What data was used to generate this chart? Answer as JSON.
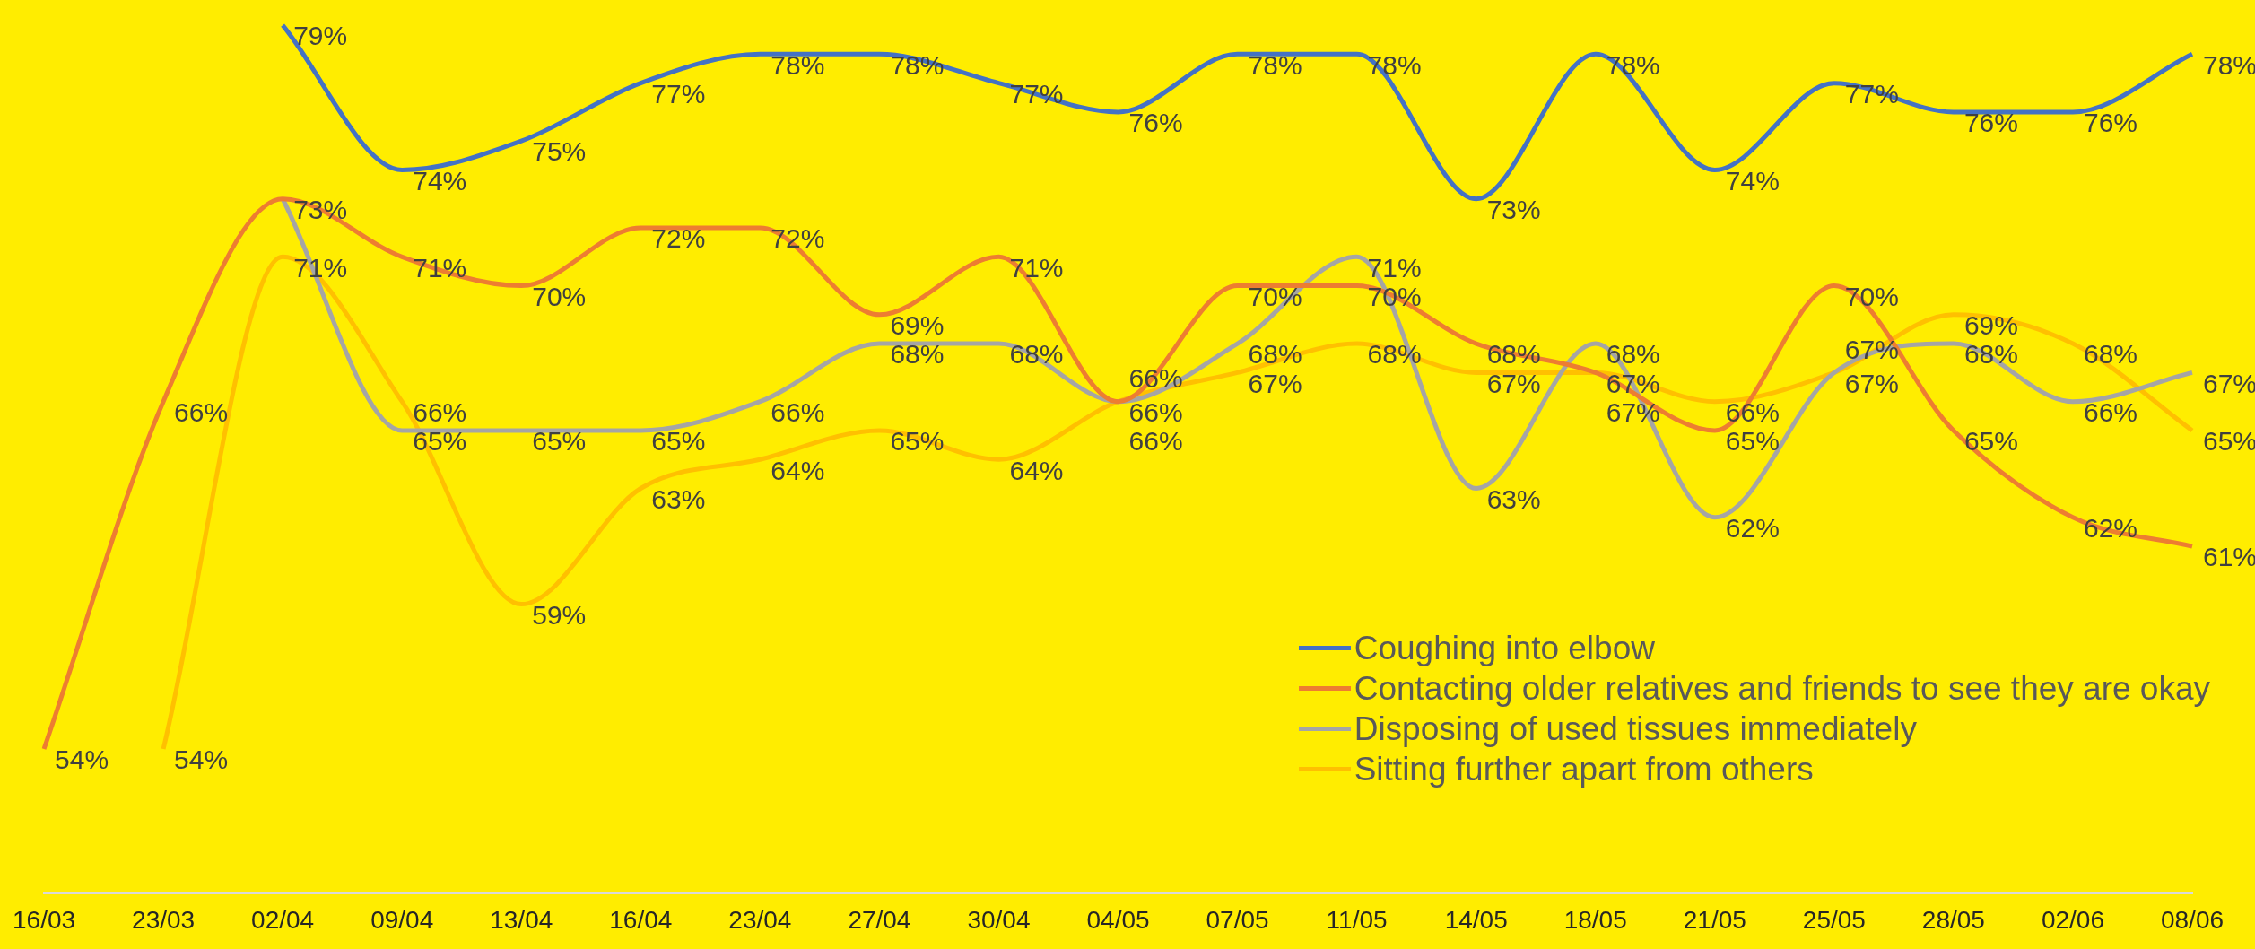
{
  "chart_data": {
    "type": "line",
    "categories": [
      "16/03",
      "23/03",
      "02/04",
      "09/04",
      "13/04",
      "16/04",
      "23/04",
      "27/04",
      "30/04",
      "04/05",
      "07/05",
      "11/05",
      "14/05",
      "18/05",
      "21/05",
      "25/05",
      "28/05",
      "02/06",
      "08/06"
    ],
    "series": [
      {
        "name": "Coughing into elbow",
        "color": "#4472c4",
        "values": [
          null,
          null,
          79,
          74,
          75,
          77,
          78,
          78,
          77,
          76,
          78,
          78,
          73,
          78,
          74,
          77,
          76,
          76,
          78
        ],
        "value_labels": [
          null,
          null,
          "79%",
          "74%",
          "75%",
          "77%",
          "78%",
          "78%",
          "77%",
          "76%",
          "78%",
          "78%",
          "73%",
          "78%",
          "74%",
          "77%",
          "76%",
          "76%",
          "78%"
        ]
      },
      {
        "name": "Contacting older relatives and friends to see they are okay",
        "color": "#ed7d31",
        "values": [
          54,
          66,
          73,
          71,
          70,
          72,
          72,
          69,
          71,
          66,
          70,
          70,
          68,
          67,
          65,
          70,
          65,
          62,
          61
        ],
        "value_labels": [
          "54%",
          "66%",
          "73%",
          "71%",
          "70%",
          "72%",
          "72%",
          "69%",
          "71%",
          "66%",
          "70%",
          "70%",
          "68%",
          "67%",
          "65%",
          "70%",
          "65%",
          "62%",
          "61%"
        ]
      },
      {
        "name": "Disposing of used tissues immediately",
        "color": "#a5a5a5",
        "values": [
          null,
          null,
          73,
          65,
          65,
          65,
          66,
          68,
          68,
          66,
          68,
          71,
          63,
          68,
          62,
          67,
          68,
          66,
          67
        ],
        "value_labels": [
          null,
          null,
          null,
          "65%",
          "65%",
          "65%",
          "66%",
          "68%",
          "68%",
          "66%",
          "68%",
          "71%",
          "63%",
          "68%",
          "62%",
          "67%",
          "68%",
          "66%",
          "67%"
        ]
      },
      {
        "name": "Sitting further apart from others",
        "color": "#ffc000",
        "values": [
          null,
          54,
          71,
          66,
          59,
          63,
          64,
          65,
          64,
          66,
          67,
          68,
          67,
          67,
          66,
          67,
          69,
          68,
          65
        ],
        "value_labels": [
          null,
          "54%",
          "71%",
          "66%",
          "59%",
          "63%",
          "64%",
          "65%",
          "64%",
          "66%",
          "67%",
          "68%",
          "67%",
          "67%",
          "66%",
          "67%",
          "69%",
          "68%",
          "65%"
        ]
      }
    ],
    "legend": "bottom right",
    "grid": false,
    "marker": "none",
    "line_style": "solid"
  }
}
